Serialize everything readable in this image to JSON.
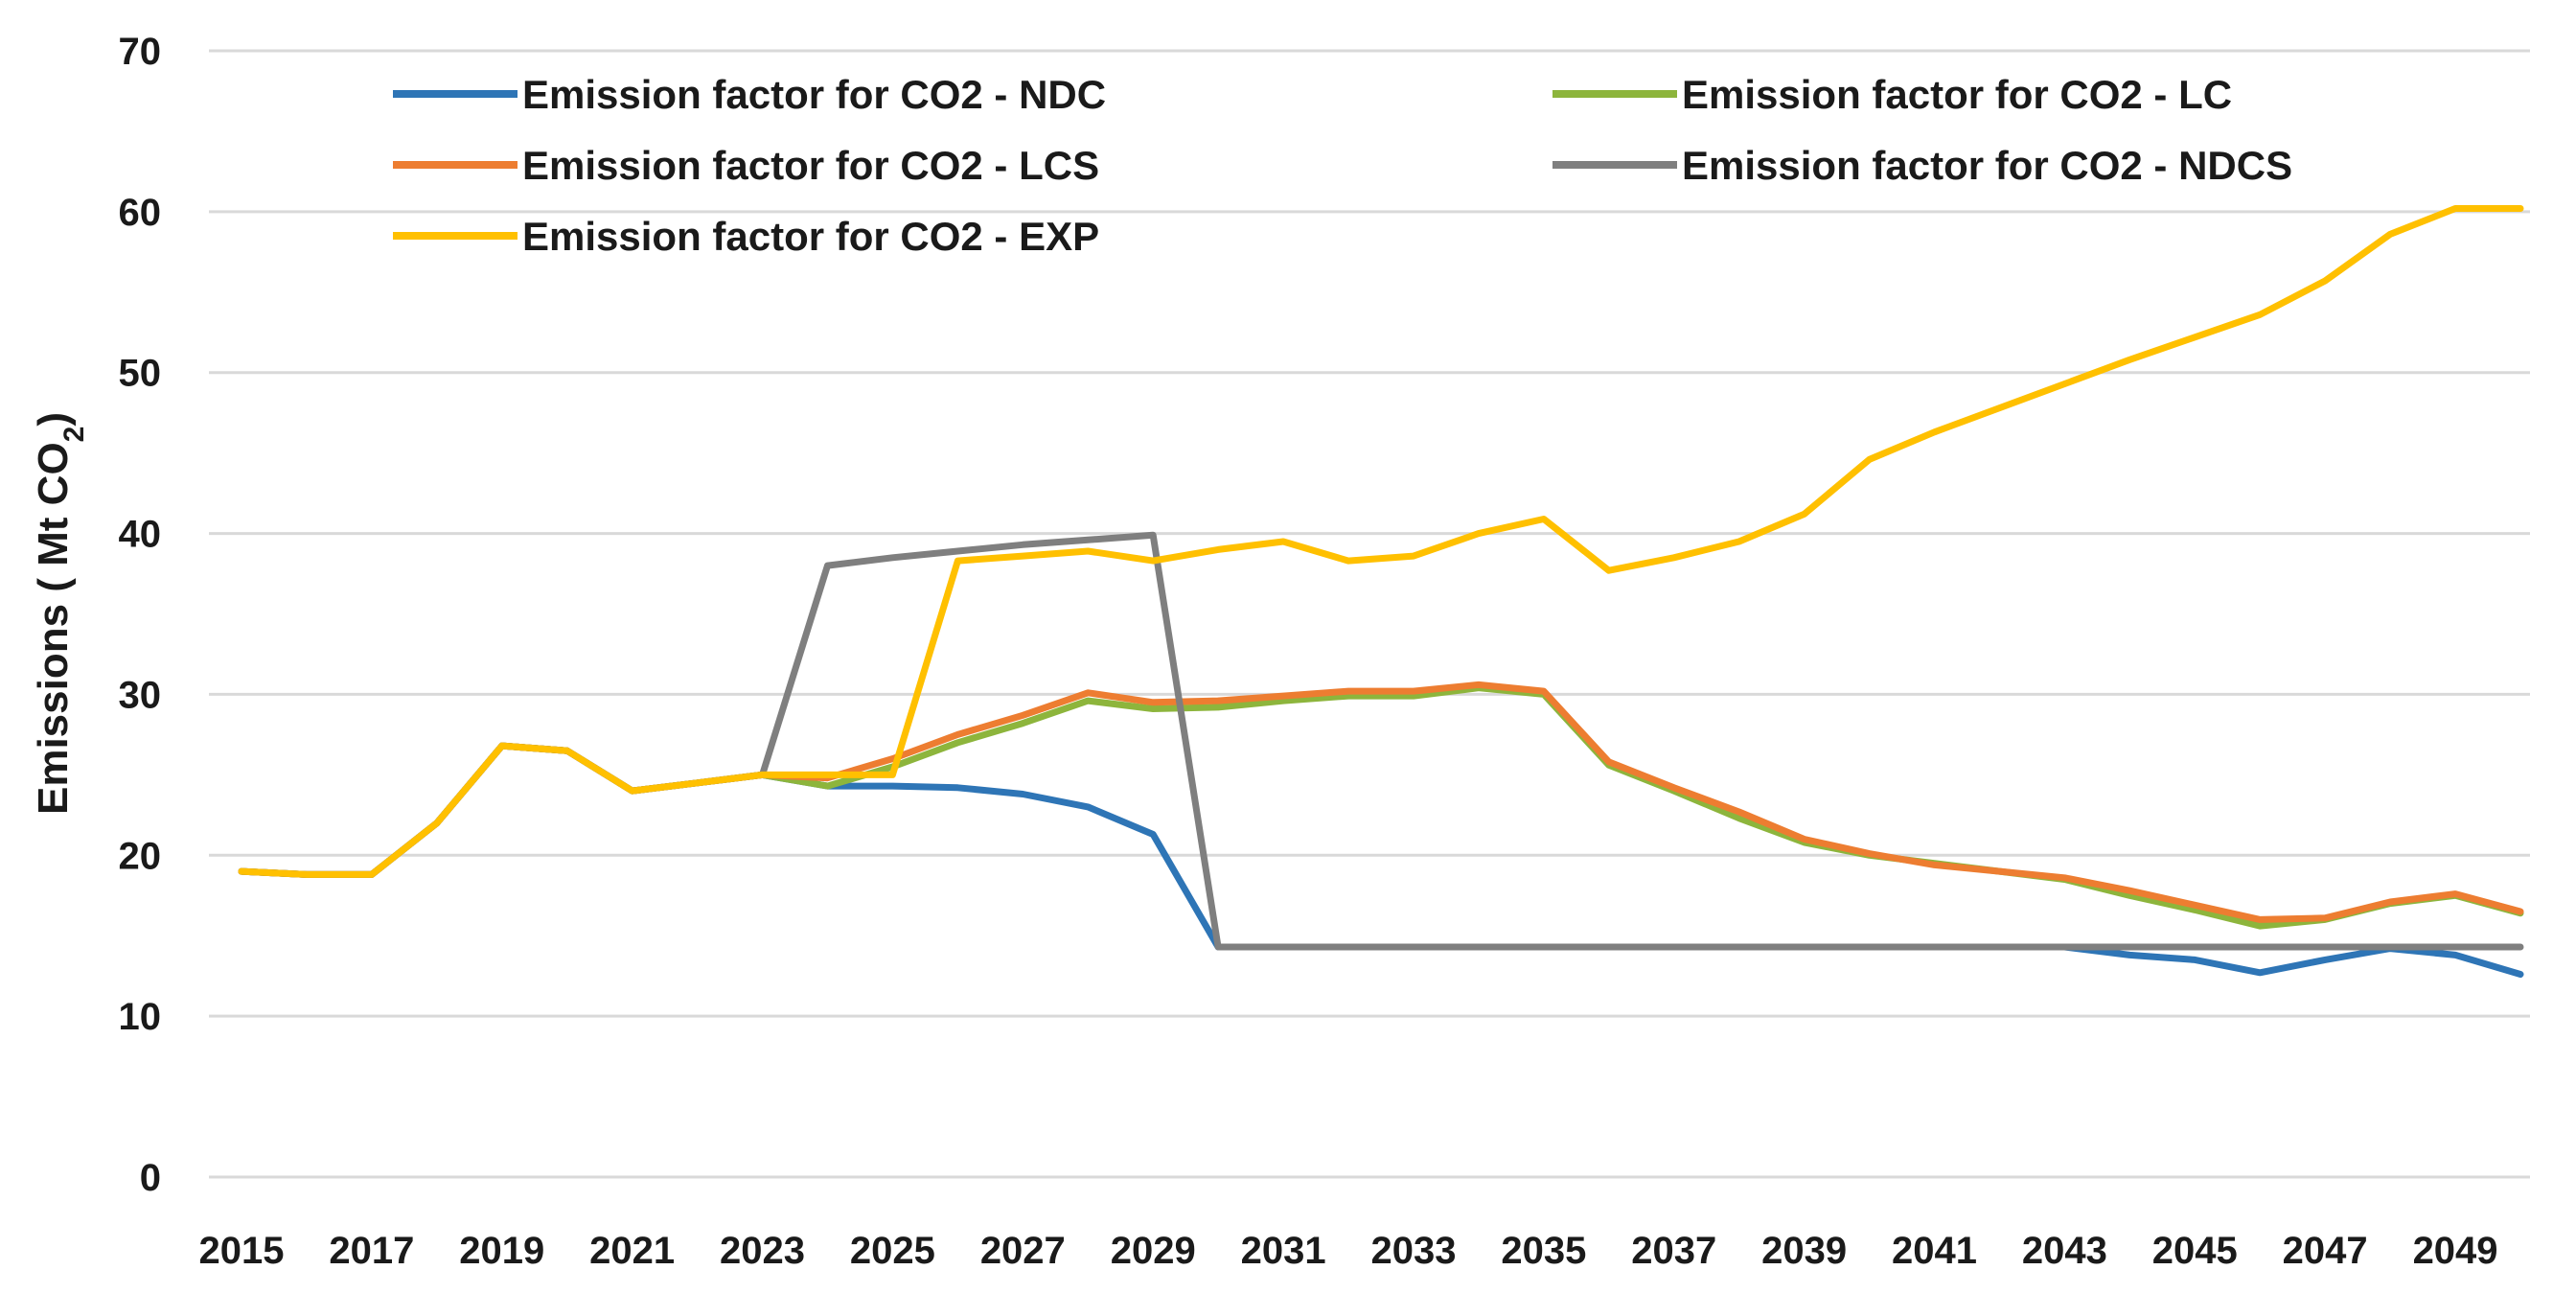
{
  "chart_data": {
    "type": "line",
    "ylabel_prefix": "Emissions ( Mt CO",
    "ylabel_subscript": "2",
    "ylabel_suffix": ")",
    "xlabel": "",
    "ylim": [
      0,
      70
    ],
    "yticks": [
      0,
      10,
      20,
      30,
      40,
      50,
      60,
      70
    ],
    "x": [
      2015,
      2016,
      2017,
      2018,
      2019,
      2020,
      2021,
      2022,
      2023,
      2024,
      2025,
      2026,
      2027,
      2028,
      2029,
      2030,
      2031,
      2032,
      2033,
      2034,
      2035,
      2036,
      2037,
      2038,
      2039,
      2040,
      2041,
      2042,
      2043,
      2044,
      2045,
      2046,
      2047,
      2048,
      2049,
      2050
    ],
    "xtick_labels": [
      "2015",
      "2017",
      "2019",
      "2021",
      "2023",
      "2025",
      "2027",
      "2029",
      "2031",
      "2033",
      "2035",
      "2037",
      "2039",
      "2041",
      "2043",
      "2045",
      "2047",
      "2049"
    ],
    "grid": true,
    "legend_position": "top",
    "series": [
      {
        "name": "Emission factor for CO2 - NDC",
        "color": "#2E75B6",
        "values": [
          19,
          18.8,
          18.8,
          22,
          26.8,
          26.5,
          24,
          24.5,
          25,
          24.3,
          24.3,
          24.2,
          23.8,
          23,
          21.3,
          14.3,
          14.3,
          14.3,
          14.3,
          14.3,
          14.3,
          14.3,
          14.3,
          14.3,
          14.3,
          14.3,
          14.3,
          14.3,
          14.3,
          13.8,
          13.5,
          12.7,
          13.5,
          14.2,
          13.8,
          12.6
        ]
      },
      {
        "name": "Emission factor for CO2 - LC",
        "color": "#8DB53C",
        "values": [
          19,
          18.8,
          18.8,
          22,
          26.8,
          26.5,
          24,
          24.5,
          25,
          24.3,
          25.5,
          27,
          28.2,
          29.6,
          29.1,
          29.2,
          29.6,
          29.9,
          29.9,
          30.4,
          30,
          25.6,
          24,
          22.3,
          20.8,
          20,
          19.5,
          19,
          18.5,
          17.5,
          16.6,
          15.6,
          16,
          17,
          17.5,
          16.4
        ]
      },
      {
        "name": "Emission factor for CO2 - LCS",
        "color": "#ED7D31",
        "values": [
          19,
          18.8,
          18.8,
          22,
          26.8,
          26.5,
          24,
          24.5,
          25,
          24.8,
          26,
          27.5,
          28.7,
          30.1,
          29.5,
          29.6,
          29.9,
          30.2,
          30.2,
          30.6,
          30.2,
          25.8,
          24.2,
          22.7,
          21,
          20.1,
          19.4,
          19,
          18.6,
          17.8,
          16.9,
          16,
          16.1,
          17.1,
          17.6,
          16.5
        ]
      },
      {
        "name": "Emission factor for CO2 - NDCS",
        "color": "#7F7F7F",
        "values": [
          19,
          18.8,
          18.8,
          22,
          26.8,
          26.5,
          24,
          24.5,
          25,
          38,
          38.5,
          38.9,
          39.3,
          39.6,
          39.9,
          14.3,
          14.3,
          14.3,
          14.3,
          14.3,
          14.3,
          14.3,
          14.3,
          14.3,
          14.3,
          14.3,
          14.3,
          14.3,
          14.3,
          14.3,
          14.3,
          14.3,
          14.3,
          14.3,
          14.3,
          14.3
        ]
      },
      {
        "name": "Emission factor for CO2 - EXP",
        "color": "#FFC000",
        "values": [
          19,
          18.8,
          18.8,
          22,
          26.8,
          26.5,
          24,
          24.5,
          25,
          25,
          25,
          38.3,
          38.6,
          38.9,
          38.3,
          39,
          39.5,
          38.3,
          38.6,
          40,
          40.9,
          37.7,
          38.5,
          39.5,
          41.2,
          44.6,
          46.3,
          47.8,
          49.3,
          50.8,
          52.2,
          53.6,
          55.7,
          58.6,
          60.2,
          60.2
        ]
      }
    ]
  }
}
